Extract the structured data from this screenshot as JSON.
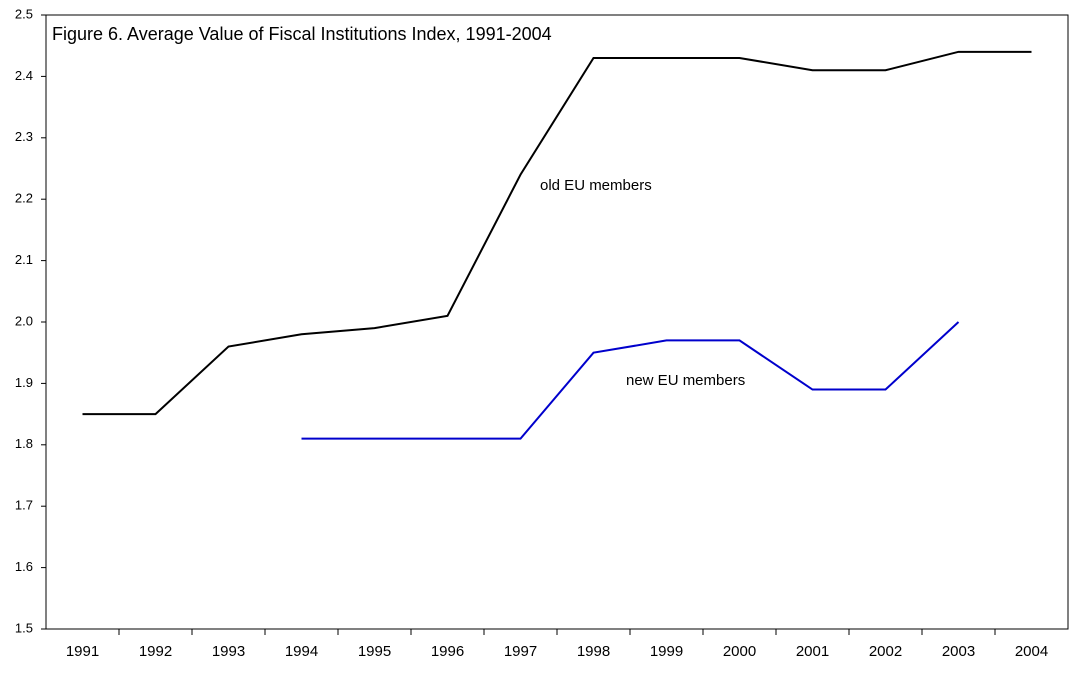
{
  "chart_data": {
    "type": "line",
    "title": "Figure 6. Average Value of Fiscal Institutions Index, 1991-2004",
    "categories": [
      "1991",
      "1992",
      "1993",
      "1994",
      "1995",
      "1996",
      "1997",
      "1998",
      "1999",
      "2000",
      "2001",
      "2002",
      "2003",
      "2004"
    ],
    "series": [
      {
        "name": "old EU members",
        "color": "#000000",
        "values": [
          1.85,
          1.85,
          1.96,
          1.98,
          1.99,
          2.01,
          2.24,
          2.43,
          2.43,
          2.43,
          2.41,
          2.41,
          2.44,
          2.44
        ]
      },
      {
        "name": "new EU members",
        "color": "#0000cc",
        "values": [
          null,
          null,
          null,
          1.81,
          1.81,
          1.81,
          1.81,
          1.95,
          1.97,
          1.97,
          1.89,
          1.89,
          2.0,
          null
        ]
      }
    ],
    "ylim": [
      1.5,
      2.5
    ],
    "yticks": [
      1.5,
      1.6,
      1.7,
      1.8,
      1.9,
      {
        "value": 2,
        "label": "2.0"
      },
      2.1,
      2.2,
      2.3,
      2.4,
      2.5
    ],
    "grid": false
  }
}
